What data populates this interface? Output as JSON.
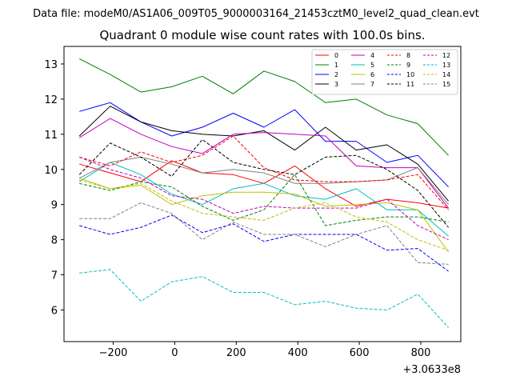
{
  "chart_data": {
    "type": "line",
    "suptitle": "Data file: modeM0/AS1A06_009T05_9000003164_21453cztM0_level2_quad_clean.evt",
    "title": "Quadrant 0 module wise count rates with 100.0s bins.",
    "x_offset_label": "+3.0633e8",
    "xlabel": "",
    "ylabel": "",
    "xlim": [
      -360,
      930
    ],
    "ylim": [
      5.1,
      13.5
    ],
    "x_ticks": [
      -200,
      0,
      200,
      400,
      600,
      800
    ],
    "x_tick_labels": [
      "−200",
      "0",
      "200",
      "400",
      "600",
      "800"
    ],
    "y_ticks": [
      6,
      7,
      8,
      9,
      10,
      11,
      12,
      13
    ],
    "y_tick_labels": [
      "6",
      "7",
      "8",
      "9",
      "10",
      "11",
      "12",
      "13"
    ],
    "x": [
      -310,
      -210,
      -110,
      -10,
      90,
      190,
      290,
      390,
      490,
      590,
      690,
      790,
      890
    ],
    "legend_position": "top-right",
    "series": [
      {
        "name": "0",
        "color": "#ff0000",
        "dashed": false,
        "values": [
          10.15,
          9.9,
          9.65,
          10.25,
          9.9,
          9.85,
          9.6,
          10.1,
          9.45,
          8.95,
          9.15,
          9.05,
          8.9
        ]
      },
      {
        "name": "1",
        "color": "#008000",
        "dashed": false,
        "values": [
          13.15,
          12.7,
          12.2,
          12.35,
          12.65,
          12.15,
          12.8,
          12.5,
          11.9,
          12.0,
          11.55,
          11.3,
          10.4
        ]
      },
      {
        "name": "2",
        "color": "#0000ff",
        "dashed": false,
        "values": [
          11.65,
          11.9,
          11.35,
          10.95,
          11.2,
          11.6,
          11.2,
          11.7,
          10.8,
          10.8,
          10.2,
          10.4,
          9.5
        ]
      },
      {
        "name": "3",
        "color": "#000000",
        "dashed": false,
        "values": [
          10.95,
          11.8,
          11.35,
          11.1,
          11.0,
          10.95,
          11.1,
          10.55,
          11.2,
          10.55,
          10.7,
          10.15,
          9.1
        ]
      },
      {
        "name": "4",
        "color": "#bf00bf",
        "dashed": false,
        "values": [
          10.9,
          11.45,
          11.0,
          10.65,
          10.45,
          11.0,
          11.05,
          11.0,
          10.95,
          10.1,
          10.05,
          10.05,
          8.9
        ]
      },
      {
        "name": "5",
        "color": "#00bfbf",
        "dashed": false,
        "values": [
          9.65,
          10.2,
          9.85,
          9.3,
          9.0,
          9.45,
          9.6,
          9.25,
          9.15,
          9.45,
          8.85,
          8.85,
          8.1
        ]
      },
      {
        "name": "6",
        "color": "#bfbf00",
        "dashed": false,
        "values": [
          9.75,
          9.45,
          9.55,
          9.0,
          9.25,
          9.35,
          9.35,
          9.3,
          8.95,
          9.0,
          9.05,
          8.85,
          7.65
        ]
      },
      {
        "name": "7",
        "color": "#808080",
        "dashed": false,
        "values": [
          9.75,
          10.2,
          10.35,
          10.15,
          9.9,
          10.0,
          9.9,
          9.6,
          9.6,
          9.65,
          9.7,
          10.05,
          9.0
        ]
      },
      {
        "name": "8",
        "color": "#ff0000",
        "dashed": true,
        "values": [
          10.35,
          10.1,
          10.5,
          10.2,
          10.4,
          10.95,
          10.05,
          9.7,
          9.65,
          9.65,
          9.7,
          9.85,
          8.85
        ]
      },
      {
        "name": "9",
        "color": "#008000",
        "dashed": true,
        "values": [
          9.6,
          9.4,
          9.65,
          9.5,
          8.95,
          8.55,
          8.85,
          9.85,
          8.4,
          8.55,
          8.65,
          8.65,
          8.5
        ]
      },
      {
        "name": "10",
        "color": "#0000ff",
        "dashed": true,
        "values": [
          8.4,
          8.15,
          8.35,
          8.7,
          8.2,
          8.45,
          7.95,
          8.15,
          8.15,
          8.15,
          7.7,
          7.75,
          7.1
        ]
      },
      {
        "name": "11",
        "color": "#000000",
        "dashed": true,
        "values": [
          9.85,
          10.75,
          10.35,
          9.8,
          10.85,
          10.2,
          10.0,
          9.85,
          10.35,
          10.4,
          10.0,
          9.4,
          8.35
        ]
      },
      {
        "name": "12",
        "color": "#bf00bf",
        "dashed": true,
        "values": [
          10.35,
          10.0,
          9.75,
          9.25,
          9.15,
          8.75,
          8.95,
          8.9,
          8.9,
          8.9,
          9.15,
          8.4,
          8.0
        ]
      },
      {
        "name": "13",
        "color": "#00bfbf",
        "dashed": true,
        "values": [
          7.05,
          7.15,
          6.25,
          6.8,
          6.95,
          6.5,
          6.5,
          6.15,
          6.25,
          6.05,
          6.0,
          6.45,
          5.5
        ]
      },
      {
        "name": "14",
        "color": "#bfbf00",
        "dashed": true,
        "values": [
          9.7,
          9.45,
          9.6,
          9.1,
          8.75,
          8.65,
          8.55,
          8.9,
          9.05,
          8.65,
          8.5,
          8.0,
          7.7
        ]
      },
      {
        "name": "15",
        "color": "#808080",
        "dashed": true,
        "values": [
          8.6,
          8.6,
          9.05,
          8.75,
          8.0,
          8.5,
          8.15,
          8.15,
          7.8,
          8.15,
          8.4,
          7.35,
          7.3
        ]
      }
    ]
  }
}
